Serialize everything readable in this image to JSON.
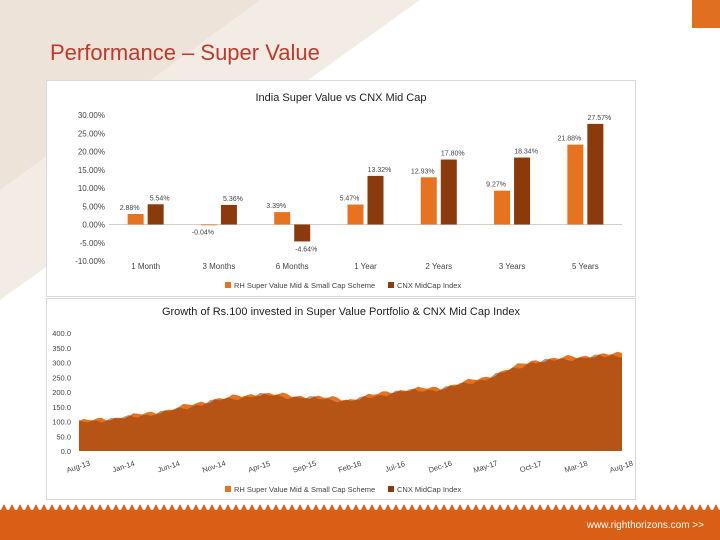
{
  "slide": {
    "title": "Performance – Super Value",
    "footer_url": "www.righthorizons.com  >>"
  },
  "colors": {
    "series1": "#e8731f",
    "series2": "#8b3a0c",
    "accent": "#d95f16"
  },
  "chart_data": [
    {
      "type": "bar",
      "title": "India Super Value vs CNX Mid Cap",
      "categories": [
        "1 Month",
        "3 Months",
        "6 Months",
        "1 Year",
        "2 Years",
        "3 Years",
        "5 Years"
      ],
      "ytick_labels": [
        "30.00%",
        "25.00%",
        "20.00%",
        "15.00%",
        "10.00%",
        "5.00%",
        "0.00%",
        "-5.00%",
        "-10.00%"
      ],
      "ylim": [
        -10,
        30
      ],
      "series": [
        {
          "name": "RH Super Value Mid & Small Cap Scheme",
          "values": [
            2.88,
            -0.04,
            3.39,
            5.47,
            12.93,
            9.27,
            21.88
          ],
          "labels": [
            "2.88%",
            "-0.04%",
            "3.39%",
            "5.47%",
            "12.93%",
            "9.27%",
            "21.88%"
          ]
        },
        {
          "name": "CNX MidCap Index",
          "values": [
            5.54,
            5.36,
            -4.64,
            13.32,
            17.8,
            18.34,
            27.57
          ],
          "labels": [
            "5.54%",
            "5.36%",
            "-4.64%",
            "13.32%",
            "17.80%",
            "18.34%",
            "27.57%"
          ]
        }
      ],
      "legend": "bottom"
    },
    {
      "type": "area",
      "title": "Growth of Rs.100 invested in Super Value Portfolio & CNX Mid Cap Index",
      "x": [
        "Aug-13",
        "Jan-14",
        "Jun-14",
        "Nov-14",
        "Apr-15",
        "Sep-15",
        "Feb-16",
        "Jul-16",
        "Dec-16",
        "May-17",
        "Oct-17",
        "Mar-18",
        "Aug-18"
      ],
      "ytick_labels": [
        "400.0",
        "350.0",
        "300.0",
        "250.0",
        "200.0",
        "150.0",
        "100.0",
        "50.0",
        "0.0"
      ],
      "ylim": [
        0,
        400
      ],
      "series": [
        {
          "name": "RH Super Value Mid & Small Cap Scheme",
          "values": [
            100,
            115,
            140,
            175,
            195,
            185,
            175,
            205,
            215,
            250,
            305,
            320,
            330
          ]
        },
        {
          "name": "CNX MidCap Index",
          "values": [
            98,
            112,
            135,
            170,
            190,
            180,
            170,
            200,
            210,
            245,
            300,
            315,
            325
          ]
        }
      ],
      "legend": "bottom"
    }
  ]
}
